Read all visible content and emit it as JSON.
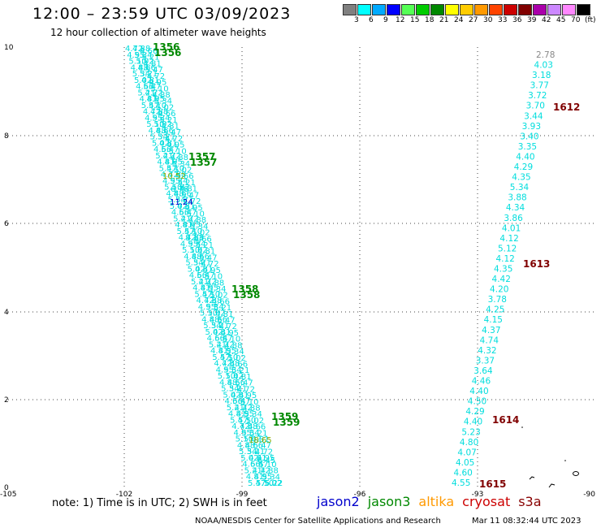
{
  "header": {
    "title": "12:00 – 23:59 UTC 03/09/2023",
    "subtitle": "12 hour collection of altimeter wave heights"
  },
  "legend": {
    "unit": "(ft)",
    "colors": [
      "#808080",
      "#00ffff",
      "#00aaff",
      "#0000ff",
      "#55ff55",
      "#00cc00",
      "#008800",
      "#ffff00",
      "#ffcc00",
      "#ff9900",
      "#ff4400",
      "#cc0000",
      "#800000",
      "#aa00aa",
      "#cc88ff",
      "#ff88ff",
      "#000000"
    ],
    "labels": [
      "3",
      "6",
      "9",
      "12",
      "15",
      "18",
      "21",
      "24",
      "27",
      "30",
      "33",
      "36",
      "39",
      "42",
      "45",
      "70"
    ]
  },
  "axes": {
    "x_ticks": [
      "-105",
      "-102",
      "-99",
      "-96",
      "-93",
      "-90"
    ],
    "y_ticks": [
      "0",
      "2",
      "4",
      "6",
      "8",
      "10"
    ]
  },
  "tracks": {
    "pass_labels_west": [
      "1356",
      "1356",
      "1357",
      "1357",
      "1358",
      "1358",
      "1359",
      "1359"
    ],
    "pass_labels_east": [
      "1612",
      "1613",
      "1614",
      "1615"
    ],
    "west_notable_values": [
      {
        "text": "10.52",
        "color": "#88aa00"
      },
      {
        "text": "11.24",
        "color": "#0000cc"
      },
      {
        "text": "18.65",
        "color": "#88aa00"
      },
      {
        "text": "5.22",
        "color": "#00dddd"
      },
      {
        "text": "6.45",
        "color": "#00dddd"
      },
      {
        "text": "6.76",
        "color": "#00dddd"
      },
      {
        "text": "8.13",
        "color": "#00dddd"
      }
    ],
    "east_values": [
      "2.78",
      "4.03",
      "3.18",
      "3.77",
      "3.72",
      "3.70",
      "3.44",
      "3.93",
      "3.40",
      "3.35",
      "4.40",
      "4.29",
      "4.35",
      "5.34",
      "3.88",
      "4.34",
      "3.86",
      "4.01",
      "4.12",
      "5.12",
      "4.12",
      "4.35",
      "4.42",
      "4.20",
      "3.78",
      "4.25",
      "4.15",
      "4.37",
      "4.74",
      "4.32",
      "3.37",
      "3.64",
      "4.46",
      "4.40",
      "4.50",
      "4.29",
      "4.40",
      "5.23",
      "4.80",
      "4.07",
      "4.05",
      "4.60",
      "4.55"
    ]
  },
  "footer": {
    "note": "note: 1) Time is in UTC; 2) SWH is in feet",
    "satellites": [
      {
        "name": "jason2",
        "color": "#0000cc"
      },
      {
        "name": "jason3",
        "color": "#008800"
      },
      {
        "name": "altika",
        "color": "#ff9900"
      },
      {
        "name": "cryosat",
        "color": "#cc0000"
      },
      {
        "name": "s3a",
        "color": "#880000"
      }
    ],
    "credit": "NOAA/NESDIS Center for Satellite Applications and Research",
    "timestamp": "Mar 11 08:32:44 UTC 2023"
  }
}
